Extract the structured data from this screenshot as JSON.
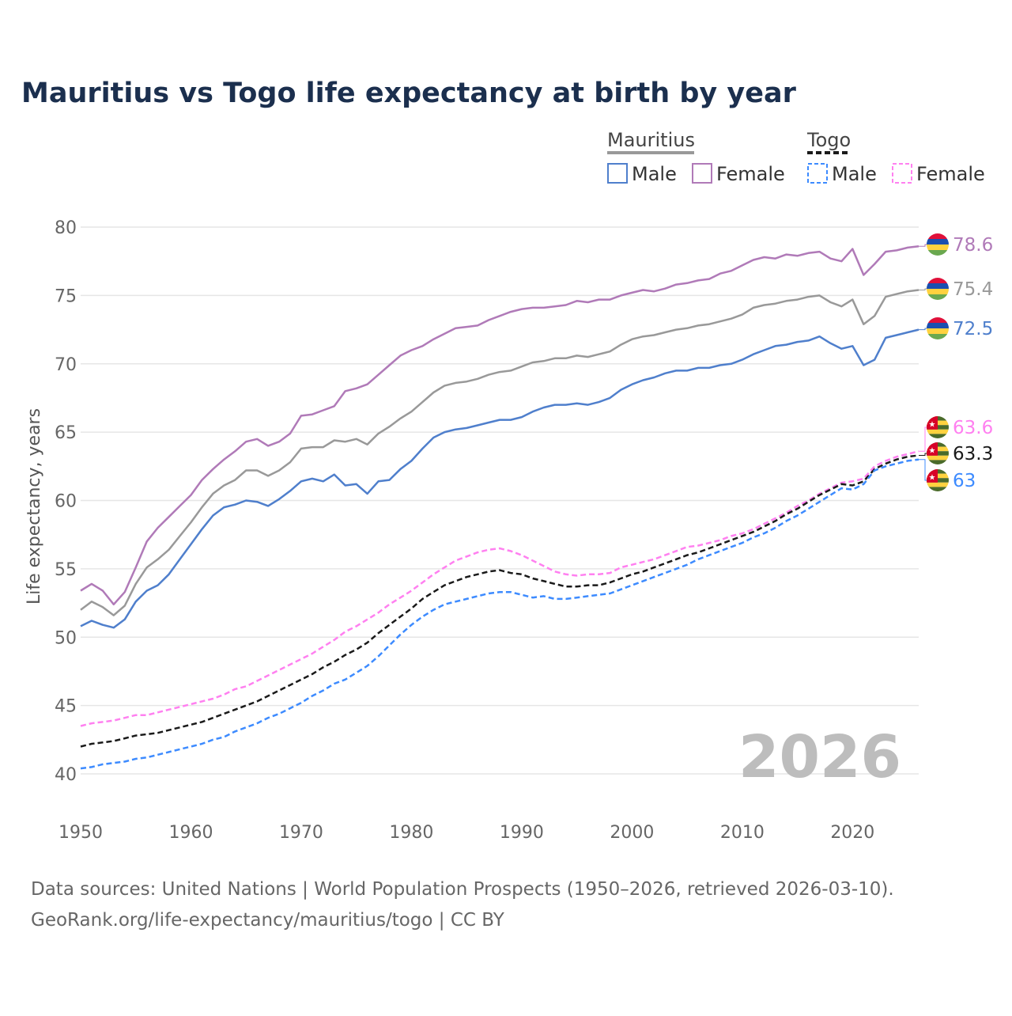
{
  "chart_data": {
    "type": "line",
    "title": "Mauritius vs Togo life expectancy at birth by year",
    "xlabel": "",
    "ylabel": "Life expectancy, years",
    "xlim": [
      1950,
      2026
    ],
    "ylim": [
      40,
      80
    ],
    "x_ticks": [
      "1950",
      "1960",
      "1970",
      "1980",
      "1990",
      "2000",
      "2010",
      "2020"
    ],
    "y_ticks": [
      "40",
      "45",
      "50",
      "55",
      "60",
      "65",
      "70",
      "75",
      "80"
    ],
    "grid": true,
    "watermark_year": "2026",
    "legend": {
      "placement": "top-right",
      "groups": [
        {
          "country": "Mauritius",
          "items": [
            "Male",
            "Female"
          ]
        },
        {
          "country": "Togo",
          "items": [
            "Male",
            "Female"
          ]
        }
      ]
    },
    "x_start": 1950,
    "series": [
      {
        "name": "Mauritius Female",
        "country": "mauritius",
        "color": "#b07ab8",
        "dashed": false,
        "end_label": "78.6",
        "values": [
          53.4,
          53.9,
          53.4,
          52.4,
          53.3,
          55.1,
          57.0,
          58.0,
          58.8,
          59.6,
          60.4,
          61.5,
          62.3,
          63.0,
          63.6,
          64.3,
          64.5,
          64.0,
          64.3,
          64.9,
          66.2,
          66.3,
          66.6,
          66.9,
          68.0,
          68.2,
          68.5,
          69.2,
          69.9,
          70.6,
          71.0,
          71.3,
          71.8,
          72.2,
          72.6,
          72.7,
          72.8,
          73.2,
          73.5,
          73.8,
          74.0,
          74.1,
          74.1,
          74.2,
          74.3,
          74.6,
          74.5,
          74.7,
          74.7,
          75.0,
          75.2,
          75.4,
          75.3,
          75.5,
          75.8,
          75.9,
          76.1,
          76.2,
          76.6,
          76.8,
          77.2,
          77.6,
          77.8,
          77.7,
          78.0,
          77.9,
          78.1,
          78.2,
          77.7,
          77.5,
          78.4,
          76.5,
          77.3,
          78.2,
          78.3,
          78.5,
          78.6
        ]
      },
      {
        "name": "Mauritius",
        "country": "mauritius",
        "color": "#999999",
        "dashed": false,
        "end_label": "75.4",
        "values": [
          52.0,
          52.6,
          52.2,
          51.6,
          52.3,
          53.9,
          55.1,
          55.7,
          56.4,
          57.4,
          58.4,
          59.5,
          60.5,
          61.1,
          61.5,
          62.2,
          62.2,
          61.8,
          62.2,
          62.8,
          63.8,
          63.9,
          63.9,
          64.4,
          64.3,
          64.5,
          64.1,
          64.9,
          65.4,
          66.0,
          66.5,
          67.2,
          67.9,
          68.4,
          68.6,
          68.7,
          68.9,
          69.2,
          69.4,
          69.5,
          69.8,
          70.1,
          70.2,
          70.4,
          70.4,
          70.6,
          70.5,
          70.7,
          70.9,
          71.4,
          71.8,
          72.0,
          72.1,
          72.3,
          72.5,
          72.6,
          72.8,
          72.9,
          73.1,
          73.3,
          73.6,
          74.1,
          74.3,
          74.4,
          74.6,
          74.7,
          74.9,
          75.0,
          74.5,
          74.2,
          74.7,
          72.9,
          73.5,
          74.9,
          75.1,
          75.3,
          75.4
        ]
      },
      {
        "name": "Mauritius Male",
        "country": "mauritius",
        "color": "#4f7fcc",
        "dashed": false,
        "end_label": "72.5",
        "values": [
          50.8,
          51.2,
          50.9,
          50.7,
          51.3,
          52.6,
          53.4,
          53.8,
          54.6,
          55.7,
          56.8,
          57.9,
          58.9,
          59.5,
          59.7,
          60.0,
          59.9,
          59.6,
          60.1,
          60.7,
          61.4,
          61.6,
          61.4,
          61.9,
          61.1,
          61.2,
          60.5,
          61.4,
          61.5,
          62.3,
          62.9,
          63.8,
          64.6,
          65.0,
          65.2,
          65.3,
          65.5,
          65.7,
          65.9,
          65.9,
          66.1,
          66.5,
          66.8,
          67.0,
          67.0,
          67.1,
          67.0,
          67.2,
          67.5,
          68.1,
          68.5,
          68.8,
          69.0,
          69.3,
          69.5,
          69.5,
          69.7,
          69.7,
          69.9,
          70.0,
          70.3,
          70.7,
          71.0,
          71.3,
          71.4,
          71.6,
          71.7,
          72.0,
          71.5,
          71.1,
          71.3,
          69.9,
          70.3,
          71.9,
          72.1,
          72.3,
          72.5
        ]
      },
      {
        "name": "Togo Female",
        "country": "togo",
        "color": "#ff80f0",
        "dashed": true,
        "end_label": "63.6",
        "values": [
          43.5,
          43.7,
          43.8,
          43.9,
          44.1,
          44.3,
          44.3,
          44.5,
          44.7,
          44.9,
          45.1,
          45.3,
          45.5,
          45.8,
          46.2,
          46.4,
          46.8,
          47.2,
          47.6,
          48.0,
          48.4,
          48.8,
          49.3,
          49.8,
          50.4,
          50.8,
          51.3,
          51.8,
          52.4,
          52.9,
          53.4,
          54.0,
          54.6,
          55.1,
          55.6,
          55.9,
          56.2,
          56.4,
          56.5,
          56.3,
          56.0,
          55.6,
          55.2,
          54.8,
          54.6,
          54.5,
          54.6,
          54.6,
          54.7,
          55.1,
          55.3,
          55.5,
          55.7,
          56.0,
          56.3,
          56.6,
          56.7,
          56.9,
          57.1,
          57.4,
          57.6,
          57.9,
          58.3,
          58.7,
          59.1,
          59.6,
          60.0,
          60.5,
          60.9,
          61.3,
          61.4,
          61.6,
          62.5,
          62.9,
          63.2,
          63.4,
          63.6
        ]
      },
      {
        "name": "Togo",
        "country": "togo",
        "color": "#1a1a1a",
        "dashed": true,
        "end_label": "63.3",
        "values": [
          42.0,
          42.2,
          42.3,
          42.4,
          42.6,
          42.8,
          42.9,
          43.0,
          43.2,
          43.4,
          43.6,
          43.8,
          44.1,
          44.4,
          44.7,
          45.0,
          45.3,
          45.7,
          46.1,
          46.5,
          46.9,
          47.3,
          47.8,
          48.2,
          48.7,
          49.1,
          49.6,
          50.3,
          50.9,
          51.5,
          52.1,
          52.8,
          53.3,
          53.8,
          54.1,
          54.4,
          54.6,
          54.8,
          54.9,
          54.7,
          54.6,
          54.3,
          54.1,
          53.9,
          53.7,
          53.7,
          53.8,
          53.8,
          54.0,
          54.3,
          54.6,
          54.8,
          55.1,
          55.4,
          55.7,
          56.0,
          56.2,
          56.5,
          56.8,
          57.1,
          57.4,
          57.7,
          58.1,
          58.5,
          59.0,
          59.4,
          59.9,
          60.4,
          60.8,
          61.2,
          61.1,
          61.4,
          62.3,
          62.7,
          63.0,
          63.2,
          63.3
        ]
      },
      {
        "name": "Togo Male",
        "country": "togo",
        "color": "#3d8bff",
        "dashed": true,
        "end_label": "63",
        "values": [
          40.4,
          40.5,
          40.7,
          40.8,
          40.9,
          41.1,
          41.2,
          41.4,
          41.6,
          41.8,
          42.0,
          42.2,
          42.5,
          42.7,
          43.1,
          43.4,
          43.7,
          44.1,
          44.4,
          44.8,
          45.2,
          45.7,
          46.1,
          46.6,
          46.9,
          47.4,
          47.9,
          48.6,
          49.4,
          50.2,
          50.9,
          51.5,
          52.0,
          52.4,
          52.6,
          52.8,
          53.0,
          53.2,
          53.3,
          53.3,
          53.1,
          52.9,
          53.0,
          52.8,
          52.8,
          52.9,
          53.0,
          53.1,
          53.2,
          53.5,
          53.8,
          54.1,
          54.4,
          54.7,
          55.0,
          55.3,
          55.7,
          56.0,
          56.3,
          56.6,
          56.9,
          57.3,
          57.6,
          58.0,
          58.5,
          58.9,
          59.4,
          59.9,
          60.4,
          60.9,
          60.8,
          61.2,
          62.2,
          62.5,
          62.7,
          62.9,
          63.0
        ]
      }
    ],
    "source": "Data sources: United Nations | World Population Prospects (1950–2026, retrieved 2026-03-10).",
    "attribution": "GeoRank.org/life-expectancy/mauritius/togo | CC BY"
  }
}
